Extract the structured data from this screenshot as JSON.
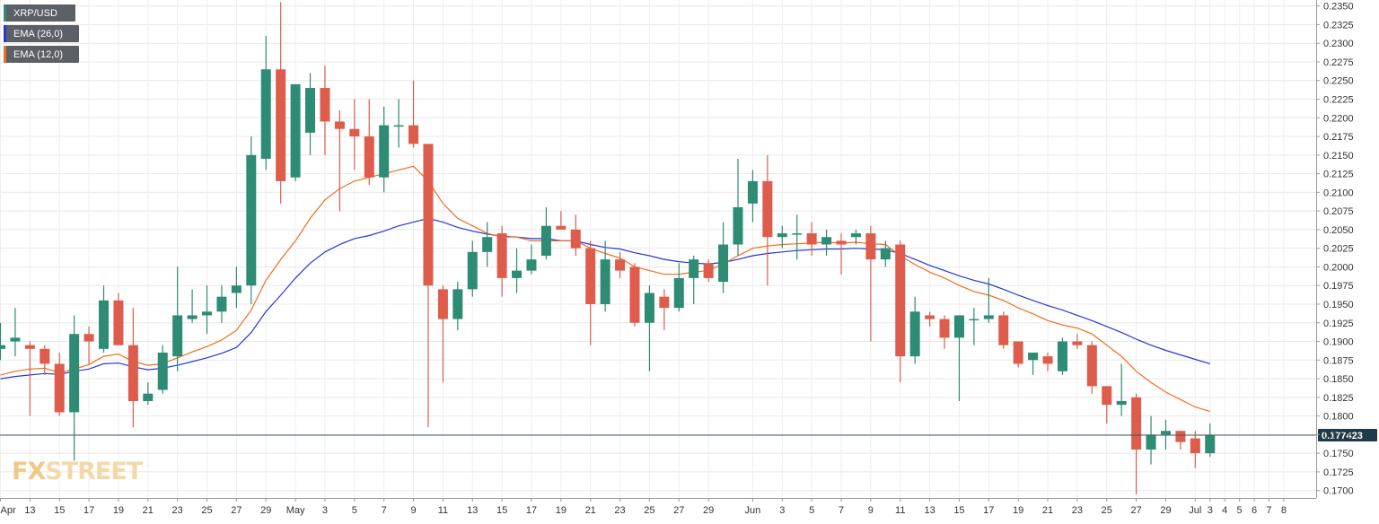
{
  "legend": [
    {
      "label": "XRP/USD",
      "color": "#2e8b74"
    },
    {
      "label": "EMA (26,0)",
      "color": "#2536d9"
    },
    {
      "label": "EMA (12,0)",
      "color": "#ef6d1e"
    }
  ],
  "logo": {
    "prefix": "FX",
    "suffix": "STREET"
  },
  "chart_data": {
    "type": "candlestick",
    "title": "",
    "xlabel": "",
    "ylabel": "",
    "ylim": [
      0.169,
      0.2358
    ],
    "y_ticks": [
      "0.1700",
      "0.1725",
      "0.1750",
      "0.1775",
      "0.1800",
      "0.1825",
      "0.1850",
      "0.1875",
      "0.1900",
      "0.1925",
      "0.1950",
      "0.1975",
      "0.2000",
      "0.2025",
      "0.2050",
      "0.2075",
      "0.2100",
      "0.2125",
      "0.2150",
      "0.2175",
      "0.2200",
      "0.2225",
      "0.2250",
      "0.2275",
      "0.2300",
      "0.2325",
      "0.2350"
    ],
    "x_ticks": [
      {
        "label": "Apr",
        "slot": 0
      },
      {
        "label": "13",
        "slot": 2
      },
      {
        "label": "15",
        "slot": 4
      },
      {
        "label": "17",
        "slot": 6
      },
      {
        "label": "19",
        "slot": 8
      },
      {
        "label": "21",
        "slot": 10
      },
      {
        "label": "23",
        "slot": 12
      },
      {
        "label": "25",
        "slot": 14
      },
      {
        "label": "27",
        "slot": 16
      },
      {
        "label": "29",
        "slot": 18
      },
      {
        "label": "May",
        "slot": 20
      },
      {
        "label": "3",
        "slot": 22
      },
      {
        "label": "5",
        "slot": 24
      },
      {
        "label": "7",
        "slot": 26
      },
      {
        "label": "9",
        "slot": 28
      },
      {
        "label": "11",
        "slot": 30
      },
      {
        "label": "13",
        "slot": 32
      },
      {
        "label": "15",
        "slot": 34
      },
      {
        "label": "17",
        "slot": 36
      },
      {
        "label": "19",
        "slot": 38
      },
      {
        "label": "21",
        "slot": 40
      },
      {
        "label": "23",
        "slot": 42
      },
      {
        "label": "25",
        "slot": 44
      },
      {
        "label": "27",
        "slot": 46
      },
      {
        "label": "29",
        "slot": 48
      },
      {
        "label": "Jun",
        "slot": 51
      },
      {
        "label": "3",
        "slot": 53
      },
      {
        "label": "5",
        "slot": 55
      },
      {
        "label": "7",
        "slot": 57
      },
      {
        "label": "9",
        "slot": 59
      },
      {
        "label": "11",
        "slot": 61
      },
      {
        "label": "13",
        "slot": 63
      },
      {
        "label": "15",
        "slot": 65
      },
      {
        "label": "17",
        "slot": 67
      },
      {
        "label": "19",
        "slot": 69
      },
      {
        "label": "21",
        "slot": 71
      },
      {
        "label": "23",
        "slot": 73
      },
      {
        "label": "25",
        "slot": 75
      },
      {
        "label": "27",
        "slot": 77
      },
      {
        "label": "29",
        "slot": 79
      },
      {
        "label": "Jul",
        "slot": 81
      },
      {
        "label": "3",
        "slot": 82
      },
      {
        "label": "4",
        "slot": 83
      },
      {
        "label": "5",
        "slot": 84
      },
      {
        "label": "6",
        "slot": 85
      },
      {
        "label": "7",
        "slot": 86
      },
      {
        "label": "8",
        "slot": 87
      }
    ],
    "candles": [
      {
        "o": 0.189,
        "h": 0.1925,
        "l": 0.1875,
        "c": 0.1895
      },
      {
        "o": 0.19,
        "h": 0.1945,
        "l": 0.188,
        "c": 0.1905
      },
      {
        "o": 0.1895,
        "h": 0.19,
        "l": 0.18,
        "c": 0.189
      },
      {
        "o": 0.189,
        "h": 0.1895,
        "l": 0.1855,
        "c": 0.187
      },
      {
        "o": 0.187,
        "h": 0.1885,
        "l": 0.18,
        "c": 0.1805
      },
      {
        "o": 0.1805,
        "h": 0.1935,
        "l": 0.174,
        "c": 0.191
      },
      {
        "o": 0.191,
        "h": 0.192,
        "l": 0.187,
        "c": 0.19
      },
      {
        "o": 0.189,
        "h": 0.1975,
        "l": 0.1885,
        "c": 0.1955
      },
      {
        "o": 0.1955,
        "h": 0.1965,
        "l": 0.1895,
        "c": 0.1895
      },
      {
        "o": 0.1895,
        "h": 0.1945,
        "l": 0.1785,
        "c": 0.182
      },
      {
        "o": 0.182,
        "h": 0.1845,
        "l": 0.1815,
        "c": 0.183
      },
      {
        "o": 0.1835,
        "h": 0.1895,
        "l": 0.183,
        "c": 0.1885
      },
      {
        "o": 0.188,
        "h": 0.2,
        "l": 0.186,
        "c": 0.1935
      },
      {
        "o": 0.193,
        "h": 0.197,
        "l": 0.1925,
        "c": 0.1935
      },
      {
        "o": 0.1935,
        "h": 0.1975,
        "l": 0.191,
        "c": 0.194
      },
      {
        "o": 0.194,
        "h": 0.1975,
        "l": 0.1925,
        "c": 0.196
      },
      {
        "o": 0.1965,
        "h": 0.2,
        "l": 0.1945,
        "c": 0.1975
      },
      {
        "o": 0.1975,
        "h": 0.2175,
        "l": 0.195,
        "c": 0.215
      },
      {
        "o": 0.2145,
        "h": 0.231,
        "l": 0.213,
        "c": 0.2265
      },
      {
        "o": 0.2265,
        "h": 0.2355,
        "l": 0.2085,
        "c": 0.2115
      },
      {
        "o": 0.212,
        "h": 0.224,
        "l": 0.2115,
        "c": 0.2245
      },
      {
        "o": 0.218,
        "h": 0.226,
        "l": 0.215,
        "c": 0.224
      },
      {
        "o": 0.224,
        "h": 0.227,
        "l": 0.215,
        "c": 0.2195
      },
      {
        "o": 0.2195,
        "h": 0.221,
        "l": 0.2075,
        "c": 0.2185
      },
      {
        "o": 0.2185,
        "h": 0.2225,
        "l": 0.213,
        "c": 0.2175
      },
      {
        "o": 0.2175,
        "h": 0.2225,
        "l": 0.211,
        "c": 0.212
      },
      {
        "o": 0.212,
        "h": 0.2215,
        "l": 0.21,
        "c": 0.219
      },
      {
        "o": 0.219,
        "h": 0.2225,
        "l": 0.216,
        "c": 0.219
      },
      {
        "o": 0.219,
        "h": 0.225,
        "l": 0.216,
        "c": 0.2165
      },
      {
        "o": 0.2165,
        "h": 0.2165,
        "l": 0.1785,
        "c": 0.1975
      },
      {
        "o": 0.197,
        "h": 0.1975,
        "l": 0.1845,
        "c": 0.193
      },
      {
        "o": 0.193,
        "h": 0.198,
        "l": 0.1915,
        "c": 0.197
      },
      {
        "o": 0.197,
        "h": 0.2035,
        "l": 0.196,
        "c": 0.202
      },
      {
        "o": 0.202,
        "h": 0.206,
        "l": 0.2,
        "c": 0.204
      },
      {
        "o": 0.2045,
        "h": 0.2055,
        "l": 0.196,
        "c": 0.1985
      },
      {
        "o": 0.1985,
        "h": 0.2025,
        "l": 0.1965,
        "c": 0.1995
      },
      {
        "o": 0.1995,
        "h": 0.203,
        "l": 0.199,
        "c": 0.201
      },
      {
        "o": 0.2015,
        "h": 0.208,
        "l": 0.201,
        "c": 0.2055
      },
      {
        "o": 0.2055,
        "h": 0.2075,
        "l": 0.205,
        "c": 0.205
      },
      {
        "o": 0.205,
        "h": 0.207,
        "l": 0.2015,
        "c": 0.2025
      },
      {
        "o": 0.2025,
        "h": 0.2035,
        "l": 0.1895,
        "c": 0.195
      },
      {
        "o": 0.195,
        "h": 0.2035,
        "l": 0.194,
        "c": 0.201
      },
      {
        "o": 0.201,
        "h": 0.202,
        "l": 0.1985,
        "c": 0.1995
      },
      {
        "o": 0.2,
        "h": 0.2005,
        "l": 0.192,
        "c": 0.1925
      },
      {
        "o": 0.1925,
        "h": 0.1975,
        "l": 0.186,
        "c": 0.1965
      },
      {
        "o": 0.196,
        "h": 0.197,
        "l": 0.1915,
        "c": 0.1945
      },
      {
        "o": 0.1945,
        "h": 0.2005,
        "l": 0.194,
        "c": 0.1985
      },
      {
        "o": 0.1985,
        "h": 0.2015,
        "l": 0.195,
        "c": 0.201
      },
      {
        "o": 0.2005,
        "h": 0.201,
        "l": 0.198,
        "c": 0.1985
      },
      {
        "o": 0.198,
        "h": 0.206,
        "l": 0.1965,
        "c": 0.203
      },
      {
        "o": 0.203,
        "h": 0.2145,
        "l": 0.2015,
        "c": 0.208
      },
      {
        "o": 0.2085,
        "h": 0.213,
        "l": 0.206,
        "c": 0.2115
      },
      {
        "o": 0.2115,
        "h": 0.215,
        "l": 0.1975,
        "c": 0.204
      },
      {
        "o": 0.204,
        "h": 0.2055,
        "l": 0.2025,
        "c": 0.2045
      },
      {
        "o": 0.2045,
        "h": 0.207,
        "l": 0.201,
        "c": 0.2045
      },
      {
        "o": 0.2045,
        "h": 0.206,
        "l": 0.2015,
        "c": 0.203
      },
      {
        "o": 0.203,
        "h": 0.205,
        "l": 0.2015,
        "c": 0.204
      },
      {
        "o": 0.2035,
        "h": 0.2045,
        "l": 0.199,
        "c": 0.203
      },
      {
        "o": 0.204,
        "h": 0.205,
        "l": 0.203,
        "c": 0.2045
      },
      {
        "o": 0.2045,
        "h": 0.2055,
        "l": 0.19,
        "c": 0.201
      },
      {
        "o": 0.201,
        "h": 0.2035,
        "l": 0.2,
        "c": 0.2025
      },
      {
        "o": 0.203,
        "h": 0.2035,
        "l": 0.1845,
        "c": 0.188
      },
      {
        "o": 0.188,
        "h": 0.196,
        "l": 0.187,
        "c": 0.194
      },
      {
        "o": 0.1935,
        "h": 0.194,
        "l": 0.192,
        "c": 0.193
      },
      {
        "o": 0.193,
        "h": 0.1935,
        "l": 0.189,
        "c": 0.1905
      },
      {
        "o": 0.1905,
        "h": 0.1935,
        "l": 0.182,
        "c": 0.1935
      },
      {
        "o": 0.193,
        "h": 0.1945,
        "l": 0.1895,
        "c": 0.193
      },
      {
        "o": 0.193,
        "h": 0.1985,
        "l": 0.1925,
        "c": 0.1935
      },
      {
        "o": 0.1935,
        "h": 0.194,
        "l": 0.189,
        "c": 0.1895
      },
      {
        "o": 0.19,
        "h": 0.19,
        "l": 0.1865,
        "c": 0.187
      },
      {
        "o": 0.1875,
        "h": 0.1885,
        "l": 0.1855,
        "c": 0.1885
      },
      {
        "o": 0.188,
        "h": 0.1885,
        "l": 0.186,
        "c": 0.187
      },
      {
        "o": 0.186,
        "h": 0.1905,
        "l": 0.1855,
        "c": 0.19
      },
      {
        "o": 0.19,
        "h": 0.191,
        "l": 0.189,
        "c": 0.1895
      },
      {
        "o": 0.1895,
        "h": 0.19,
        "l": 0.183,
        "c": 0.184
      },
      {
        "o": 0.184,
        "h": 0.184,
        "l": 0.179,
        "c": 0.1815
      },
      {
        "o": 0.1815,
        "h": 0.187,
        "l": 0.18,
        "c": 0.182
      },
      {
        "o": 0.1825,
        "h": 0.183,
        "l": 0.1695,
        "c": 0.1755
      },
      {
        "o": 0.1755,
        "h": 0.18,
        "l": 0.1735,
        "c": 0.1775
      },
      {
        "o": 0.1775,
        "h": 0.1795,
        "l": 0.1755,
        "c": 0.178
      },
      {
        "o": 0.178,
        "h": 0.178,
        "l": 0.1755,
        "c": 0.1765
      },
      {
        "o": 0.177,
        "h": 0.178,
        "l": 0.173,
        "c": 0.175
      },
      {
        "o": 0.175,
        "h": 0.179,
        "l": 0.1745,
        "c": 0.1774
      }
    ],
    "ema26": [
      0.185,
      0.1853,
      0.1855,
      0.1857,
      0.1856,
      0.186,
      0.1863,
      0.187,
      0.1871,
      0.1866,
      0.1862,
      0.1864,
      0.1868,
      0.1873,
      0.1878,
      0.1884,
      0.1892,
      0.1912,
      0.194,
      0.1962,
      0.1985,
      0.2005,
      0.202,
      0.203,
      0.2038,
      0.2042,
      0.2048,
      0.2055,
      0.206,
      0.2065,
      0.206,
      0.2053,
      0.2048,
      0.2044,
      0.2041,
      0.204,
      0.2038,
      0.2038,
      0.2035,
      0.2035,
      0.203,
      0.2026,
      0.2024,
      0.2019,
      0.2015,
      0.201,
      0.2007,
      0.2005,
      0.2004,
      0.2006,
      0.201,
      0.2015,
      0.2018,
      0.202,
      0.2022,
      0.2023,
      0.2024,
      0.2024,
      0.2025,
      0.2024,
      0.2023,
      0.2018,
      0.201,
      0.2002,
      0.1995,
      0.1988,
      0.1982,
      0.1977,
      0.197,
      0.1962,
      0.1955,
      0.1948,
      0.1942,
      0.1935,
      0.1928,
      0.192,
      0.1912,
      0.1903,
      0.1895,
      0.1888,
      0.1882,
      0.1876,
      0.187
    ],
    "ema12": [
      0.1855,
      0.186,
      0.1863,
      0.1864,
      0.1858,
      0.1863,
      0.1869,
      0.188,
      0.1883,
      0.1873,
      0.1868,
      0.187,
      0.1878,
      0.1886,
      0.1893,
      0.1902,
      0.1915,
      0.1942,
      0.1982,
      0.201,
      0.2035,
      0.2065,
      0.209,
      0.2105,
      0.2115,
      0.212,
      0.2125,
      0.213,
      0.2135,
      0.2115,
      0.2085,
      0.2065,
      0.2055,
      0.2045,
      0.204,
      0.204,
      0.2035,
      0.2035,
      0.2035,
      0.2035,
      0.2025,
      0.2018,
      0.2012,
      0.2,
      0.1995,
      0.199,
      0.199,
      0.1993,
      0.1995,
      0.2004,
      0.2015,
      0.2025,
      0.2028,
      0.203,
      0.2031,
      0.2032,
      0.2033,
      0.2032,
      0.2033,
      0.2031,
      0.203,
      0.2015,
      0.2003,
      0.1993,
      0.1985,
      0.1975,
      0.1967,
      0.1962,
      0.1955,
      0.1945,
      0.1937,
      0.1928,
      0.1922,
      0.1918,
      0.191,
      0.1895,
      0.188,
      0.186,
      0.1845,
      0.1832,
      0.1822,
      0.1812,
      0.1806
    ],
    "current_price": "0.177423",
    "current_value": 0.177423
  }
}
